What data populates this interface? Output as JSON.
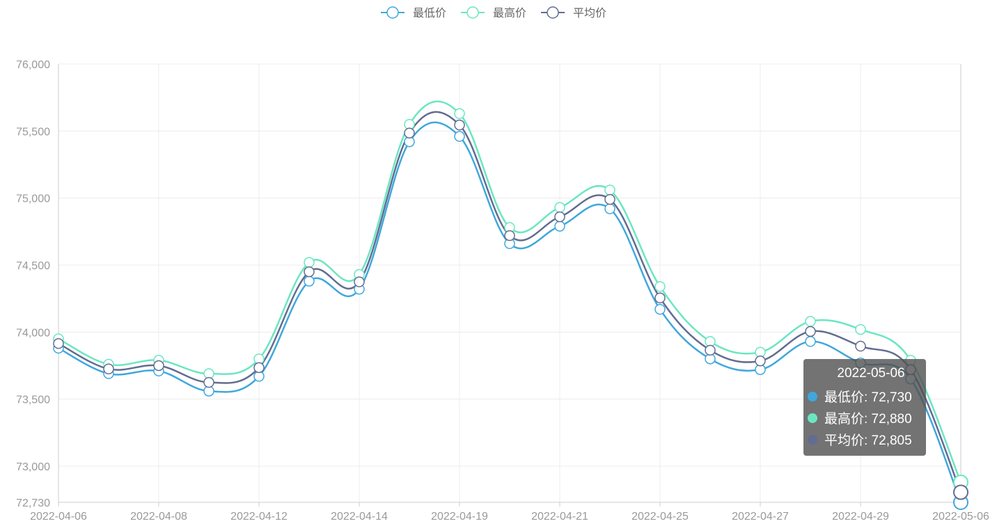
{
  "chart_data": {
    "type": "line",
    "smooth": true,
    "x": [
      "2022-04-06",
      "2022-04-07",
      "2022-04-08",
      "2022-04-11",
      "2022-04-12",
      "2022-04-13",
      "2022-04-14",
      "2022-04-15",
      "2022-04-19",
      "2022-04-20",
      "2022-04-21",
      "2022-04-22",
      "2022-04-25",
      "2022-04-26",
      "2022-04-27",
      "2022-04-28",
      "2022-04-29",
      "2022-05-05",
      "2022-05-06"
    ],
    "x_tick_labels": [
      "2022-04-06",
      "2022-04-08",
      "2022-04-12",
      "2022-04-14",
      "2022-04-19",
      "2022-04-21",
      "2022-04-25",
      "2022-04-27",
      "2022-04-29",
      "2022-05-06"
    ],
    "ylim": [
      72730,
      76000
    ],
    "y_ticks": [
      "72,730",
      "73,000",
      "73,500",
      "74,000",
      "74,500",
      "75,000",
      "75,500",
      "76,000"
    ],
    "y_tick_values": [
      72730,
      73000,
      73500,
      74000,
      74500,
      75000,
      75500,
      76000
    ],
    "legend_position": "top-center",
    "grid": true,
    "series": [
      {
        "name": "最低价",
        "color": "#3fa7dc",
        "values": [
          73880,
          73690,
          73710,
          73560,
          73670,
          74380,
          74320,
          75420,
          75460,
          74660,
          74790,
          74920,
          74170,
          73800,
          73720,
          73930,
          73770,
          73650,
          72730
        ]
      },
      {
        "name": "最高价",
        "color": "#6be6c1",
        "values": [
          73950,
          73760,
          73790,
          73690,
          73800,
          74520,
          74430,
          75550,
          75630,
          74780,
          74930,
          75060,
          74340,
          73930,
          73850,
          74080,
          74020,
          73790,
          72880
        ]
      },
      {
        "name": "平均价",
        "color": "#626c91",
        "values": [
          73915,
          73725,
          73750,
          73625,
          73735,
          74450,
          74375,
          75485,
          75545,
          74720,
          74860,
          74990,
          74255,
          73865,
          73785,
          74005,
          73895,
          73720,
          72805
        ]
      }
    ]
  },
  "tooltip": {
    "title": "2022-05-06",
    "rows": [
      {
        "label": "最低价: 72,730",
        "color": "#3fa7dc"
      },
      {
        "label": "最高价: 72,880",
        "color": "#6be6c1"
      },
      {
        "label": "平均价: 72,805",
        "color": "#626c91"
      }
    ]
  }
}
